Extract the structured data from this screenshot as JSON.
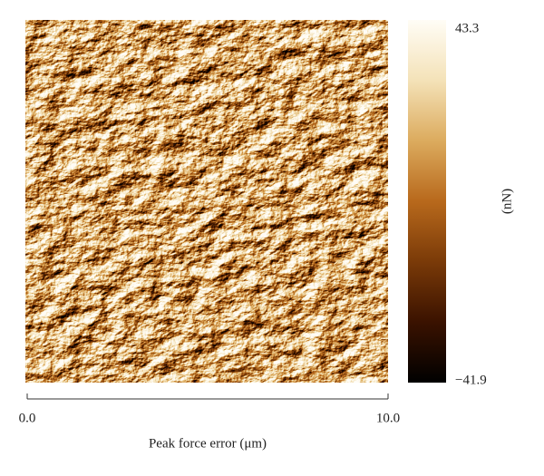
{
  "chart_data": {
    "type": "image",
    "xlabel": "Peak force error (μm)",
    "xlim": [
      0,
      10
    ],
    "xticks": [
      {
        "value": 0,
        "label": "0.0"
      },
      {
        "value": 10,
        "label": "10.0"
      }
    ],
    "colorbar_label": "(nN)",
    "clim": [
      -41.9,
      43.3
    ],
    "cticks": [
      {
        "value": -41.9,
        "label": "−41.9"
      },
      43.3
    ],
    "colormap": [
      "#000000",
      "#3a1200",
      "#7a3a08",
      "#b8691c",
      "#dcab5e",
      "#f4e2b8",
      "#fffdf6"
    ]
  }
}
